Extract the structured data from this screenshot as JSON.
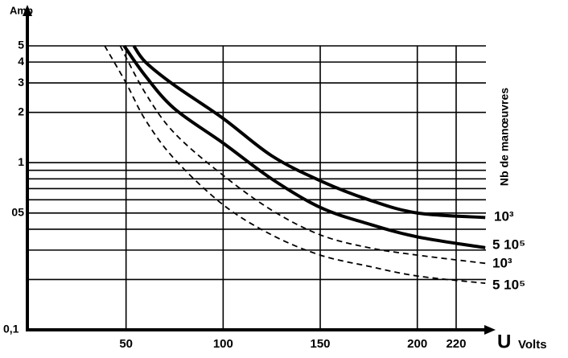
{
  "chart_data": {
    "type": "line",
    "y_label": "Amp",
    "x_label": "U",
    "x_unit": "Volts",
    "legend_title": "Nb de manœuvres",
    "log_y": true,
    "grid": true,
    "xlim": [
      0,
      237
    ],
    "ylim": [
      0.1,
      5
    ],
    "xticks": [
      50,
      100,
      150,
      200,
      220
    ],
    "yticks": [
      5,
      4,
      3,
      2,
      1,
      {
        "value": 0.5,
        "label": "05"
      },
      {
        "value": 0.1,
        "label": "0,1"
      }
    ],
    "minor_yticks": [
      0.9,
      0.8,
      0.7,
      0.6,
      0.4,
      0.3,
      0.2
    ],
    "series": [
      {
        "name": "10³",
        "color": "#000",
        "dashed": false,
        "x": [
          54,
          60,
          75,
          100,
          125,
          150,
          175,
          200,
          235
        ],
        "values": [
          5,
          4.0,
          2.9,
          1.84,
          1.1,
          0.78,
          0.6,
          0.5,
          0.47
        ]
      },
      {
        "name": "5 10⁵",
        "color": "#000",
        "dashed": false,
        "x": [
          49,
          60,
          75,
          100,
          125,
          150,
          175,
          200,
          235
        ],
        "values": [
          5,
          3.3,
          2.1,
          1.31,
          0.8,
          0.54,
          0.43,
          0.36,
          0.31
        ]
      },
      {
        "name": "10³",
        "color": "#000",
        "dashed": true,
        "x": [
          47,
          60,
          75,
          100,
          125,
          150,
          175,
          200,
          235
        ],
        "values": [
          5,
          2.6,
          1.5,
          0.84,
          0.52,
          0.37,
          0.31,
          0.28,
          0.25
        ]
      },
      {
        "name": "5 10⁵",
        "color": "#000",
        "dashed": true,
        "x": [
          39,
          50,
          60,
          75,
          100,
          125,
          150,
          175,
          200,
          235
        ],
        "values": [
          5,
          3.0,
          1.8,
          1.05,
          0.56,
          0.37,
          0.28,
          0.24,
          0.21,
          0.19
        ]
      }
    ]
  }
}
